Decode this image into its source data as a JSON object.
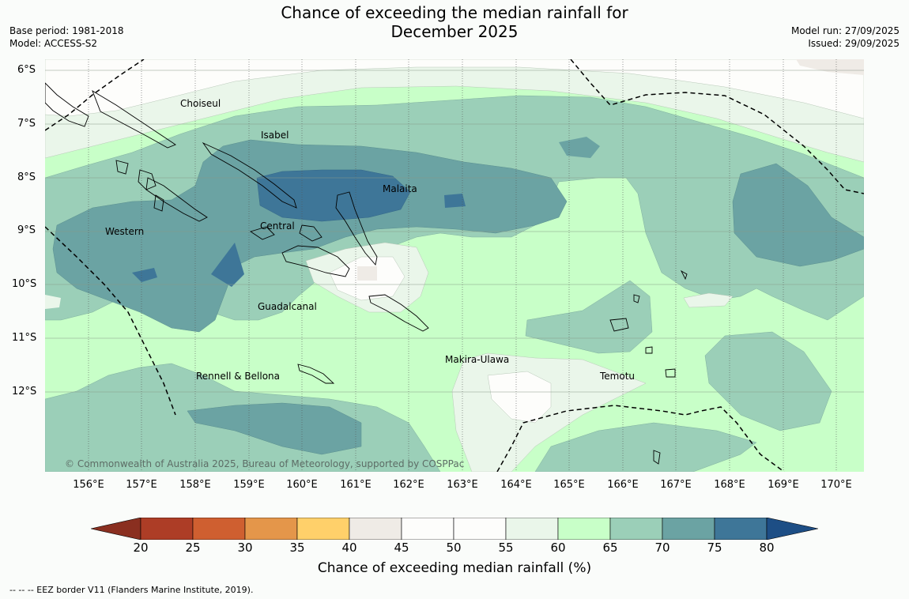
{
  "title_line1": "Chance of exceeding the median rainfall for",
  "title_line2": "December 2025",
  "base_period": "Base period: 1981-2018",
  "model": "Model: ACCESS-S2",
  "model_run": "Model run: 27/09/2025",
  "issued": "Issued: 29/09/2025",
  "lat_labels": [
    "6°S",
    "7°S",
    "8°S",
    "9°S",
    "10°S",
    "11°S",
    "12°S"
  ],
  "lon_labels": [
    "156°E",
    "157°E",
    "158°E",
    "159°E",
    "160°E",
    "161°E",
    "162°E",
    "163°E",
    "164°E",
    "165°E",
    "166°E",
    "167°E",
    "168°E",
    "169°E",
    "170°E"
  ],
  "regions": {
    "choiseul": "Choiseul",
    "isabel": "Isabel",
    "malaita": "Malaita",
    "western": "Western",
    "central": "Central",
    "guadalcanal": "Guadalcanal",
    "makira": "Makira-Ulawa",
    "rennell": "Rennell & Bellona",
    "temotu": "Temotu"
  },
  "copyright": "© Commonwealth of Australia 2025, Bureau of Meteorology, supported by COSPPac",
  "colorbar": {
    "ticks": [
      "20",
      "25",
      "30",
      "35",
      "40",
      "45",
      "50",
      "55",
      "60",
      "65",
      "70",
      "75",
      "80"
    ],
    "colors": [
      "#ad3d26",
      "#cf5f30",
      "#e4964a",
      "#ffd06a",
      "#efebe6",
      "#fdfdfb",
      "#fdfdfb",
      "#eaf6ea",
      "#c8ffc8",
      "#9bcfb8",
      "#6ba3a3",
      "#3e7698"
    ],
    "under_color": "#8a2f20",
    "over_color": "#1d4e85",
    "title": "Chance of exceeding median rainfall (%)"
  },
  "eez_note": "--  --  -- EEZ border V11 (Flanders Marine Institute, 2019)."
}
